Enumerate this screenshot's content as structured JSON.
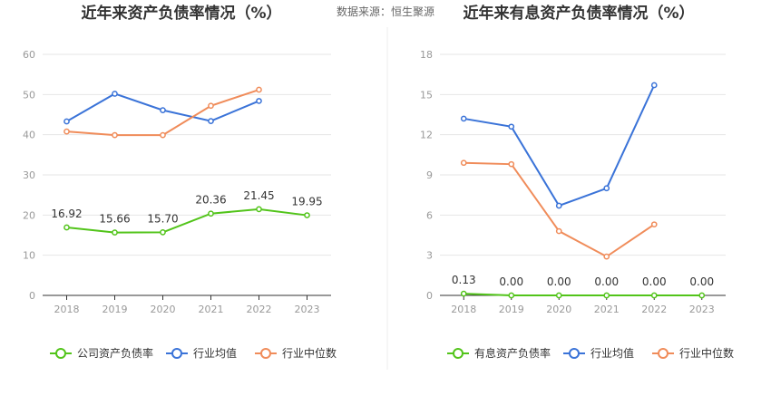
{
  "source": "数据来源：恒生聚源",
  "chart_data": [
    {
      "type": "line",
      "title": "近年来资产负债率情况（%）",
      "categories": [
        "2018",
        "2019",
        "2020",
        "2021",
        "2022",
        "2023"
      ],
      "ylim": [
        0,
        60
      ],
      "yticks": [
        0,
        10,
        20,
        30,
        40,
        50,
        60
      ],
      "grid": true,
      "legend_position": "bottom",
      "series": [
        {
          "name": "公司资产负债率",
          "color": "#52c41a",
          "values": [
            16.92,
            15.66,
            15.7,
            20.36,
            21.45,
            19.95
          ],
          "labels": [
            "16.92",
            "15.66",
            "15.70",
            "20.36",
            "21.45",
            "19.95"
          ]
        },
        {
          "name": "行业均值",
          "color": "#3a73d8",
          "values": [
            43.3,
            50.2,
            46.1,
            43.4,
            48.4,
            null
          ]
        },
        {
          "name": "行业中位数",
          "color": "#f08c5a",
          "values": [
            40.8,
            39.9,
            39.9,
            47.2,
            51.2,
            null
          ]
        }
      ]
    },
    {
      "type": "line",
      "title": "近年来有息资产负债率情况（%）",
      "categories": [
        "2018",
        "2019",
        "2020",
        "2021",
        "2022",
        "2023"
      ],
      "ylim": [
        0,
        18
      ],
      "yticks": [
        0,
        3,
        6,
        9,
        12,
        15,
        18
      ],
      "grid": true,
      "legend_position": "bottom",
      "series": [
        {
          "name": "有息资产负债率",
          "color": "#52c41a",
          "values": [
            0.13,
            0.0,
            0.0,
            0.0,
            0.0,
            0.0
          ],
          "labels": [
            "0.13",
            "0.00",
            "0.00",
            "0.00",
            "0.00",
            "0.00"
          ]
        },
        {
          "name": "行业均值",
          "color": "#3a73d8",
          "values": [
            13.2,
            12.6,
            6.7,
            8.0,
            15.7,
            null
          ]
        },
        {
          "name": "行业中位数",
          "color": "#f08c5a",
          "values": [
            9.9,
            9.8,
            4.8,
            2.9,
            5.3,
            null
          ]
        }
      ]
    }
  ]
}
